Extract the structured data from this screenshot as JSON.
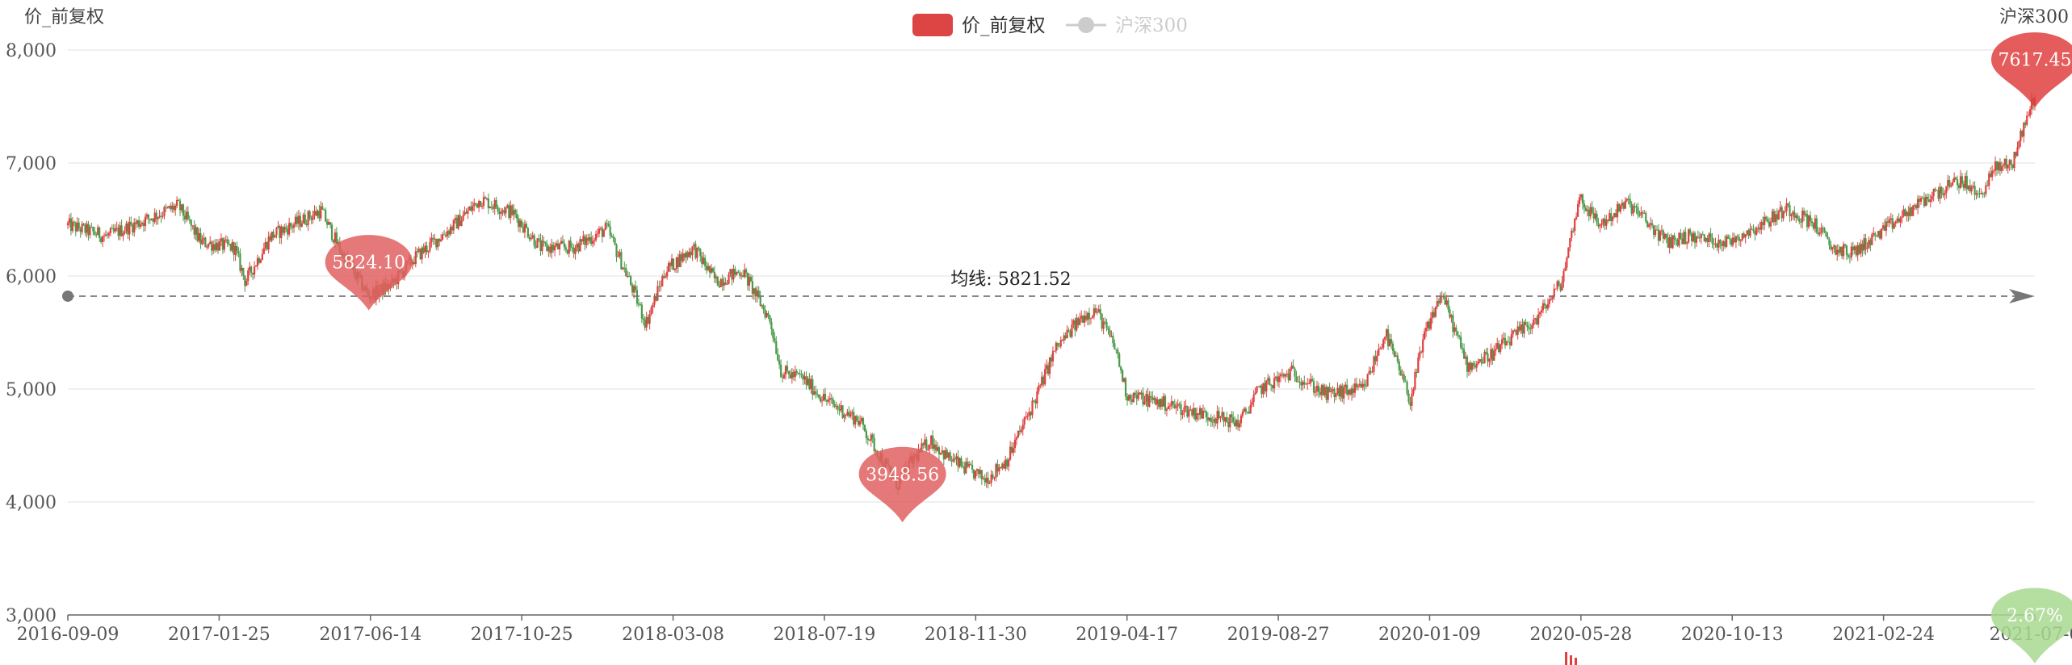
{
  "chart_data": {
    "type": "candlestick",
    "yaxis_left_title": "价_前复权",
    "yaxis_right_title": "沪深300",
    "legend": [
      {
        "label": "价_前复权",
        "color": "#dd4444",
        "active": true
      },
      {
        "label": "沪深300",
        "color": "#cccccc",
        "active": false
      }
    ],
    "ylim": [
      3000,
      8000
    ],
    "yticks": [
      3000,
      4000,
      5000,
      6000,
      7000,
      8000
    ],
    "ytick_labels": [
      "3,000",
      "4,000",
      "5,000",
      "6,000",
      "7,000",
      "8,000"
    ],
    "x_range": [
      "2016-09-09",
      "2021-08-31"
    ],
    "xticks": [
      "2016-09-09",
      "2017-01-25",
      "2017-06-14",
      "2017-10-25",
      "2018-03-08",
      "2018-07-19",
      "2018-11-30",
      "2019-04-17",
      "2019-08-27",
      "2020-01-09",
      "2020-05-28",
      "2020-10-13",
      "2021-02-24",
      "2021-07-0"
    ],
    "price_path": [
      [
        "2016-09-09",
        6450
      ],
      [
        "2016-10-15",
        6350
      ],
      [
        "2016-11-20",
        6500
      ],
      [
        "2016-12-20",
        6620
      ],
      [
        "2017-01-10",
        6300
      ],
      [
        "2017-02-10",
        6250
      ],
      [
        "2017-02-20",
        5950
      ],
      [
        "2017-03-15",
        6350
      ],
      [
        "2017-05-01",
        6580
      ],
      [
        "2017-05-20",
        6200
      ],
      [
        "2017-06-14",
        5824
      ],
      [
        "2017-07-05",
        5920
      ],
      [
        "2017-07-25",
        6150
      ],
      [
        "2017-09-01",
        6450
      ],
      [
        "2017-09-25",
        6680
      ],
      [
        "2017-10-25",
        6560
      ],
      [
        "2017-11-20",
        6250
      ],
      [
        "2017-12-20",
        6250
      ],
      [
        "2018-01-20",
        6420
      ],
      [
        "2018-02-10",
        5950
      ],
      [
        "2018-02-25",
        5580
      ],
      [
        "2018-03-15",
        6050
      ],
      [
        "2018-04-10",
        6250
      ],
      [
        "2018-05-01",
        5950
      ],
      [
        "2018-05-25",
        6050
      ],
      [
        "2018-06-20",
        5600
      ],
      [
        "2018-06-30",
        5150
      ],
      [
        "2018-07-19",
        5100
      ],
      [
        "2018-08-10",
        4900
      ],
      [
        "2018-09-10",
        4720
      ],
      [
        "2018-10-15",
        4150
      ],
      [
        "2018-10-30",
        4380
      ],
      [
        "2018-11-15",
        4550
      ],
      [
        "2018-11-30",
        4400
      ],
      [
        "2018-12-20",
        4280
      ],
      [
        "2019-01-05",
        4200
      ],
      [
        "2019-01-25",
        4380
      ],
      [
        "2019-02-20",
        4920
      ],
      [
        "2019-03-10",
        5350
      ],
      [
        "2019-04-05",
        5650
      ],
      [
        "2019-04-17",
        5700
      ],
      [
        "2019-05-05",
        5350
      ],
      [
        "2019-05-15",
        4950
      ],
      [
        "2019-06-15",
        4880
      ],
      [
        "2019-07-15",
        4800
      ],
      [
        "2019-08-27",
        4700
      ],
      [
        "2019-09-15",
        5000
      ],
      [
        "2019-10-15",
        5150
      ],
      [
        "2019-11-15",
        4950
      ],
      [
        "2019-12-20",
        5000
      ],
      [
        "2020-01-09",
        5500
      ],
      [
        "2020-02-01",
        4900
      ],
      [
        "2020-02-15",
        5500
      ],
      [
        "2020-03-01",
        5850
      ],
      [
        "2020-03-25",
        5200
      ],
      [
        "2020-04-15",
        5300
      ],
      [
        "2020-05-05",
        5450
      ],
      [
        "2020-05-28",
        5620
      ],
      [
        "2020-06-20",
        5950
      ],
      [
        "2020-07-06",
        6700
      ],
      [
        "2020-07-25",
        6450
      ],
      [
        "2020-08-20",
        6650
      ],
      [
        "2020-09-25",
        6300
      ],
      [
        "2020-10-13",
        6350
      ],
      [
        "2020-11-20",
        6300
      ],
      [
        "2020-12-20",
        6450
      ],
      [
        "2021-01-15",
        6600
      ],
      [
        "2021-02-10",
        6450
      ],
      [
        "2021-02-24",
        6250
      ],
      [
        "2021-03-15",
        6200
      ],
      [
        "2021-04-20",
        6450
      ],
      [
        "2021-05-25",
        6700
      ],
      [
        "2021-06-25",
        6850
      ],
      [
        "2021-07-10",
        6700
      ],
      [
        "2021-07-25",
        6950
      ],
      [
        "2021-08-10",
        7000
      ],
      [
        "2021-08-31",
        7617
      ]
    ],
    "mark_points": [
      {
        "label": "5824.10",
        "date": "2017-06-14",
        "value": 5824,
        "color": "#e06060"
      },
      {
        "label": "3948.56",
        "date": "2018-10-20",
        "value": 3948,
        "color": "#e06060"
      },
      {
        "label": "7617.45",
        "date": "2021-08-31",
        "value": 7617,
        "color": "#e04040"
      }
    ],
    "secondary_mark": {
      "label": "2.67%",
      "color": "#a8d890"
    },
    "mark_line": {
      "label": "均线: 5821.52",
      "value": 5821.52
    },
    "colors": {
      "up": "#e04040",
      "down": "#4a9a4a",
      "grid": "#e6e6e6",
      "axis": "#666666"
    }
  }
}
